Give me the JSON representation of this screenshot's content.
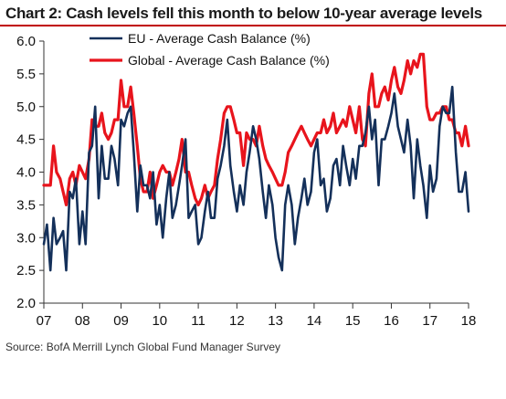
{
  "title": "Chart 2: Cash levels fell this month to below 10-year average levels",
  "source": "Source: BofA Merrill Lynch Global Fund Manager Survey",
  "colors": {
    "eu": "#14305a",
    "global": "#e8141c",
    "title_rule": "#c00000"
  },
  "chart_data": {
    "type": "line",
    "title": "Chart 2: Cash levels fell this month to below 10-year average levels",
    "xlabel": "",
    "ylabel": "",
    "xlim": [
      2007.0,
      2018.0
    ],
    "ylim": [
      2.0,
      6.0
    ],
    "y_ticks": [
      "6.0",
      "5.5",
      "5.0",
      "4.5",
      "4.0",
      "3.5",
      "3.0",
      "2.5",
      "2.0"
    ],
    "y_tick_values": [
      6.0,
      5.5,
      5.0,
      4.5,
      4.0,
      3.5,
      3.0,
      2.5,
      2.0
    ],
    "x_ticks": [
      "07",
      "08",
      "09",
      "10",
      "11",
      "12",
      "13",
      "14",
      "15",
      "16",
      "17",
      "18"
    ],
    "x_tick_values": [
      2007,
      2008,
      2009,
      2010,
      2011,
      2012,
      2013,
      2014,
      2015,
      2016,
      2017,
      2018
    ],
    "grid": false,
    "legend_position": "top-left",
    "series": [
      {
        "name": "EU - Average Cash Balance (%)",
        "color": "#14305a",
        "points": [
          [
            2007.0,
            2.9
          ],
          [
            2007.08,
            3.2
          ],
          [
            2007.17,
            2.5
          ],
          [
            2007.25,
            3.3
          ],
          [
            2007.33,
            2.9
          ],
          [
            2007.42,
            3.0
          ],
          [
            2007.5,
            3.1
          ],
          [
            2007.58,
            2.5
          ],
          [
            2007.67,
            3.7
          ],
          [
            2007.75,
            3.6
          ],
          [
            2007.83,
            3.9
          ],
          [
            2007.92,
            2.9
          ],
          [
            2008.0,
            3.4
          ],
          [
            2008.08,
            2.9
          ],
          [
            2008.17,
            4.3
          ],
          [
            2008.25,
            4.4
          ],
          [
            2008.33,
            5.0
          ],
          [
            2008.42,
            3.6
          ],
          [
            2008.5,
            4.4
          ],
          [
            2008.58,
            3.9
          ],
          [
            2008.67,
            3.9
          ],
          [
            2008.75,
            4.4
          ],
          [
            2008.83,
            4.2
          ],
          [
            2008.92,
            3.8
          ],
          [
            2009.0,
            4.8
          ],
          [
            2009.08,
            4.7
          ],
          [
            2009.17,
            4.9
          ],
          [
            2009.25,
            5.0
          ],
          [
            2009.33,
            4.3
          ],
          [
            2009.42,
            3.4
          ],
          [
            2009.5,
            4.1
          ],
          [
            2009.58,
            3.8
          ],
          [
            2009.67,
            3.8
          ],
          [
            2009.75,
            3.6
          ],
          [
            2009.83,
            4.0
          ],
          [
            2009.92,
            3.2
          ],
          [
            2010.0,
            3.5
          ],
          [
            2010.08,
            3.0
          ],
          [
            2010.17,
            3.6
          ],
          [
            2010.25,
            4.0
          ],
          [
            2010.33,
            3.3
          ],
          [
            2010.42,
            3.5
          ],
          [
            2010.5,
            3.8
          ],
          [
            2010.58,
            4.1
          ],
          [
            2010.67,
            4.5
          ],
          [
            2010.75,
            3.3
          ],
          [
            2010.83,
            3.4
          ],
          [
            2010.92,
            3.5
          ],
          [
            2011.0,
            2.9
          ],
          [
            2011.08,
            3.0
          ],
          [
            2011.17,
            3.4
          ],
          [
            2011.25,
            3.7
          ],
          [
            2011.33,
            3.3
          ],
          [
            2011.42,
            3.3
          ],
          [
            2011.5,
            3.9
          ],
          [
            2011.58,
            4.1
          ],
          [
            2011.67,
            4.4
          ],
          [
            2011.75,
            4.8
          ],
          [
            2011.83,
            4.1
          ],
          [
            2011.92,
            3.7
          ],
          [
            2012.0,
            3.4
          ],
          [
            2012.08,
            3.8
          ],
          [
            2012.17,
            3.5
          ],
          [
            2012.25,
            4.0
          ],
          [
            2012.33,
            4.3
          ],
          [
            2012.42,
            4.7
          ],
          [
            2012.5,
            4.5
          ],
          [
            2012.58,
            4.2
          ],
          [
            2012.67,
            3.7
          ],
          [
            2012.75,
            3.3
          ],
          [
            2012.83,
            3.8
          ],
          [
            2012.92,
            3.5
          ],
          [
            2013.0,
            3.0
          ],
          [
            2013.08,
            2.7
          ],
          [
            2013.17,
            2.5
          ],
          [
            2013.25,
            3.5
          ],
          [
            2013.33,
            3.8
          ],
          [
            2013.42,
            3.5
          ],
          [
            2013.5,
            2.9
          ],
          [
            2013.58,
            3.3
          ],
          [
            2013.67,
            3.6
          ],
          [
            2013.75,
            3.9
          ],
          [
            2013.83,
            3.5
          ],
          [
            2013.92,
            3.7
          ],
          [
            2014.0,
            4.3
          ],
          [
            2014.08,
            4.5
          ],
          [
            2014.17,
            3.8
          ],
          [
            2014.25,
            3.9
          ],
          [
            2014.33,
            3.4
          ],
          [
            2014.42,
            3.6
          ],
          [
            2014.5,
            4.1
          ],
          [
            2014.58,
            4.2
          ],
          [
            2014.67,
            3.8
          ],
          [
            2014.75,
            4.4
          ],
          [
            2014.83,
            4.1
          ],
          [
            2014.92,
            3.8
          ],
          [
            2015.0,
            4.2
          ],
          [
            2015.08,
            3.9
          ],
          [
            2015.17,
            4.4
          ],
          [
            2015.25,
            4.4
          ],
          [
            2015.33,
            4.6
          ],
          [
            2015.42,
            5.0
          ],
          [
            2015.5,
            4.5
          ],
          [
            2015.58,
            4.8
          ],
          [
            2015.67,
            3.8
          ],
          [
            2015.75,
            4.5
          ],
          [
            2015.83,
            4.5
          ],
          [
            2015.92,
            4.7
          ],
          [
            2016.0,
            4.9
          ],
          [
            2016.08,
            5.2
          ],
          [
            2016.17,
            4.7
          ],
          [
            2016.25,
            4.5
          ],
          [
            2016.33,
            4.3
          ],
          [
            2016.42,
            4.8
          ],
          [
            2016.5,
            4.4
          ],
          [
            2016.58,
            3.6
          ],
          [
            2016.67,
            4.5
          ],
          [
            2016.75,
            4.1
          ],
          [
            2016.83,
            3.8
          ],
          [
            2016.92,
            3.3
          ],
          [
            2017.0,
            4.1
          ],
          [
            2017.08,
            3.7
          ],
          [
            2017.17,
            3.9
          ],
          [
            2017.25,
            4.7
          ],
          [
            2017.33,
            5.0
          ],
          [
            2017.42,
            4.9
          ],
          [
            2017.5,
            4.9
          ],
          [
            2017.58,
            5.3
          ],
          [
            2017.67,
            4.3
          ],
          [
            2017.75,
            3.7
          ],
          [
            2017.83,
            3.7
          ],
          [
            2017.92,
            4.0
          ],
          [
            2018.0,
            3.4
          ]
        ]
      },
      {
        "name": "Global - Average Cash Balance (%)",
        "color": "#e8141c",
        "points": [
          [
            2007.0,
            3.8
          ],
          [
            2007.08,
            3.8
          ],
          [
            2007.17,
            3.8
          ],
          [
            2007.25,
            4.4
          ],
          [
            2007.33,
            4.0
          ],
          [
            2007.42,
            3.9
          ],
          [
            2007.5,
            3.7
          ],
          [
            2007.58,
            3.5
          ],
          [
            2007.67,
            3.9
          ],
          [
            2007.75,
            4.0
          ],
          [
            2007.83,
            3.8
          ],
          [
            2007.92,
            4.1
          ],
          [
            2008.0,
            4.0
          ],
          [
            2008.08,
            3.9
          ],
          [
            2008.17,
            4.2
          ],
          [
            2008.25,
            4.8
          ],
          [
            2008.33,
            4.7
          ],
          [
            2008.42,
            4.7
          ],
          [
            2008.5,
            4.9
          ],
          [
            2008.58,
            4.6
          ],
          [
            2008.67,
            4.5
          ],
          [
            2008.75,
            4.6
          ],
          [
            2008.83,
            4.8
          ],
          [
            2008.92,
            4.8
          ],
          [
            2009.0,
            5.4
          ],
          [
            2009.08,
            5.0
          ],
          [
            2009.17,
            5.0
          ],
          [
            2009.25,
            5.3
          ],
          [
            2009.33,
            4.9
          ],
          [
            2009.42,
            4.4
          ],
          [
            2009.5,
            3.9
          ],
          [
            2009.58,
            3.7
          ],
          [
            2009.67,
            3.7
          ],
          [
            2009.75,
            4.0
          ],
          [
            2009.83,
            3.6
          ],
          [
            2009.92,
            3.8
          ],
          [
            2010.0,
            4.0
          ],
          [
            2010.08,
            4.1
          ],
          [
            2010.17,
            4.0
          ],
          [
            2010.25,
            4.0
          ],
          [
            2010.33,
            3.8
          ],
          [
            2010.42,
            4.0
          ],
          [
            2010.5,
            4.2
          ],
          [
            2010.58,
            4.5
          ],
          [
            2010.67,
            4.0
          ],
          [
            2010.75,
            4.0
          ],
          [
            2010.83,
            3.8
          ],
          [
            2010.92,
            3.6
          ],
          [
            2011.0,
            3.5
          ],
          [
            2011.08,
            3.6
          ],
          [
            2011.17,
            3.8
          ],
          [
            2011.25,
            3.6
          ],
          [
            2011.33,
            3.7
          ],
          [
            2011.42,
            3.8
          ],
          [
            2011.5,
            4.2
          ],
          [
            2011.58,
            4.5
          ],
          [
            2011.67,
            4.9
          ],
          [
            2011.75,
            5.0
          ],
          [
            2011.83,
            5.0
          ],
          [
            2011.92,
            4.8
          ],
          [
            2012.0,
            4.6
          ],
          [
            2012.08,
            4.6
          ],
          [
            2012.17,
            4.1
          ],
          [
            2012.25,
            4.6
          ],
          [
            2012.33,
            4.5
          ],
          [
            2012.42,
            4.5
          ],
          [
            2012.5,
            4.4
          ],
          [
            2012.58,
            4.7
          ],
          [
            2012.67,
            4.4
          ],
          [
            2012.75,
            4.2
          ],
          [
            2012.83,
            4.1
          ],
          [
            2012.92,
            4.0
          ],
          [
            2013.0,
            3.9
          ],
          [
            2013.08,
            3.8
          ],
          [
            2013.17,
            3.8
          ],
          [
            2013.25,
            4.0
          ],
          [
            2013.33,
            4.3
          ],
          [
            2013.42,
            4.4
          ],
          [
            2013.5,
            4.5
          ],
          [
            2013.58,
            4.6
          ],
          [
            2013.67,
            4.7
          ],
          [
            2013.75,
            4.6
          ],
          [
            2013.83,
            4.5
          ],
          [
            2013.92,
            4.4
          ],
          [
            2014.0,
            4.5
          ],
          [
            2014.08,
            4.6
          ],
          [
            2014.17,
            4.6
          ],
          [
            2014.25,
            4.8
          ],
          [
            2014.33,
            4.6
          ],
          [
            2014.42,
            4.7
          ],
          [
            2014.5,
            4.9
          ],
          [
            2014.58,
            4.6
          ],
          [
            2014.67,
            4.7
          ],
          [
            2014.75,
            4.8
          ],
          [
            2014.83,
            4.7
          ],
          [
            2014.92,
            5.0
          ],
          [
            2015.0,
            4.8
          ],
          [
            2015.08,
            4.6
          ],
          [
            2015.17,
            5.0
          ],
          [
            2015.25,
            4.5
          ],
          [
            2015.33,
            4.4
          ],
          [
            2015.42,
            5.2
          ],
          [
            2015.5,
            5.5
          ],
          [
            2015.58,
            5.0
          ],
          [
            2015.67,
            5.0
          ],
          [
            2015.75,
            5.2
          ],
          [
            2015.83,
            5.3
          ],
          [
            2015.92,
            5.1
          ],
          [
            2016.0,
            5.4
          ],
          [
            2016.08,
            5.6
          ],
          [
            2016.17,
            5.3
          ],
          [
            2016.25,
            5.2
          ],
          [
            2016.33,
            5.4
          ],
          [
            2016.42,
            5.7
          ],
          [
            2016.5,
            5.5
          ],
          [
            2016.58,
            5.7
          ],
          [
            2016.67,
            5.6
          ],
          [
            2016.75,
            5.8
          ],
          [
            2016.83,
            5.8
          ],
          [
            2016.92,
            5.0
          ],
          [
            2017.0,
            4.8
          ],
          [
            2017.08,
            4.8
          ],
          [
            2017.17,
            4.9
          ],
          [
            2017.25,
            4.9
          ],
          [
            2017.33,
            5.0
          ],
          [
            2017.42,
            5.0
          ],
          [
            2017.5,
            4.8
          ],
          [
            2017.58,
            4.8
          ],
          [
            2017.67,
            4.6
          ],
          [
            2017.75,
            4.6
          ],
          [
            2017.83,
            4.4
          ],
          [
            2017.92,
            4.7
          ],
          [
            2018.0,
            4.4
          ]
        ]
      }
    ]
  }
}
